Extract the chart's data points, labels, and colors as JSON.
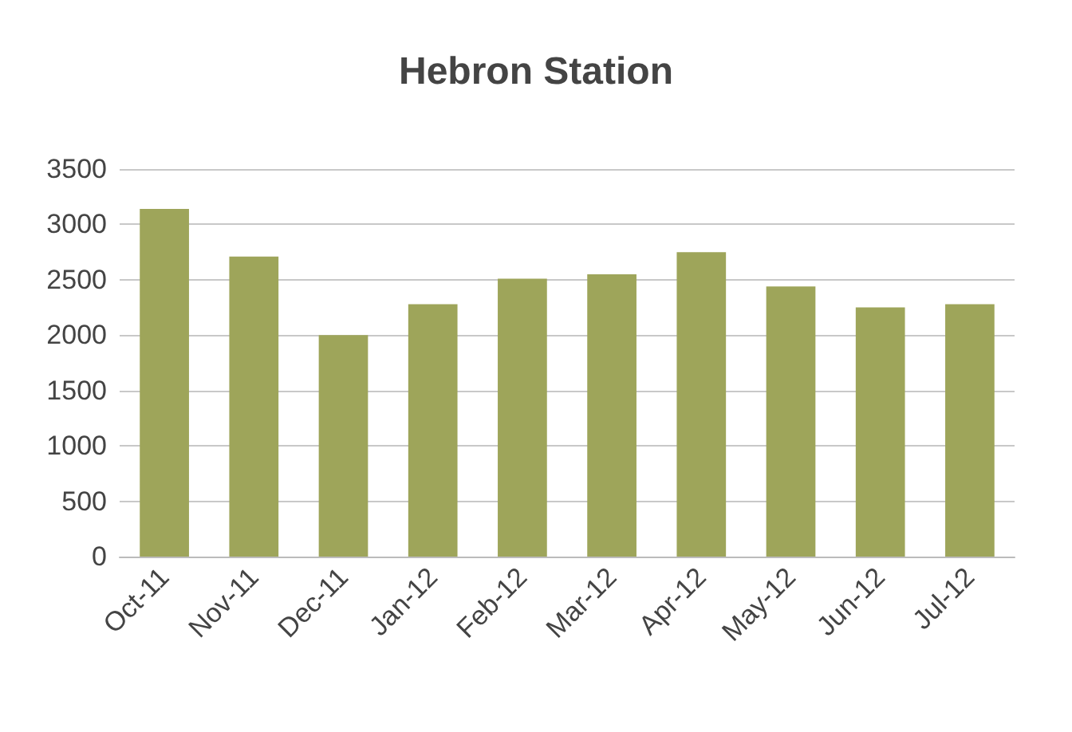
{
  "chart_data": {
    "type": "bar",
    "title": "Hebron Station",
    "categories": [
      "Oct-11",
      "Nov-11",
      "Dec-11",
      "Jan-12",
      "Feb-12",
      "Mar-12",
      "Apr-12",
      "May-12",
      "Jun-12",
      "Jul-12"
    ],
    "values": [
      3140,
      2710,
      2000,
      2280,
      2510,
      2550,
      2750,
      2440,
      2250,
      2280
    ],
    "color": "#9ea55a",
    "ylim": [
      0,
      3500
    ],
    "yticks": [
      0,
      500,
      1000,
      1500,
      2000,
      2500,
      3000,
      3500
    ],
    "grid": "y"
  }
}
